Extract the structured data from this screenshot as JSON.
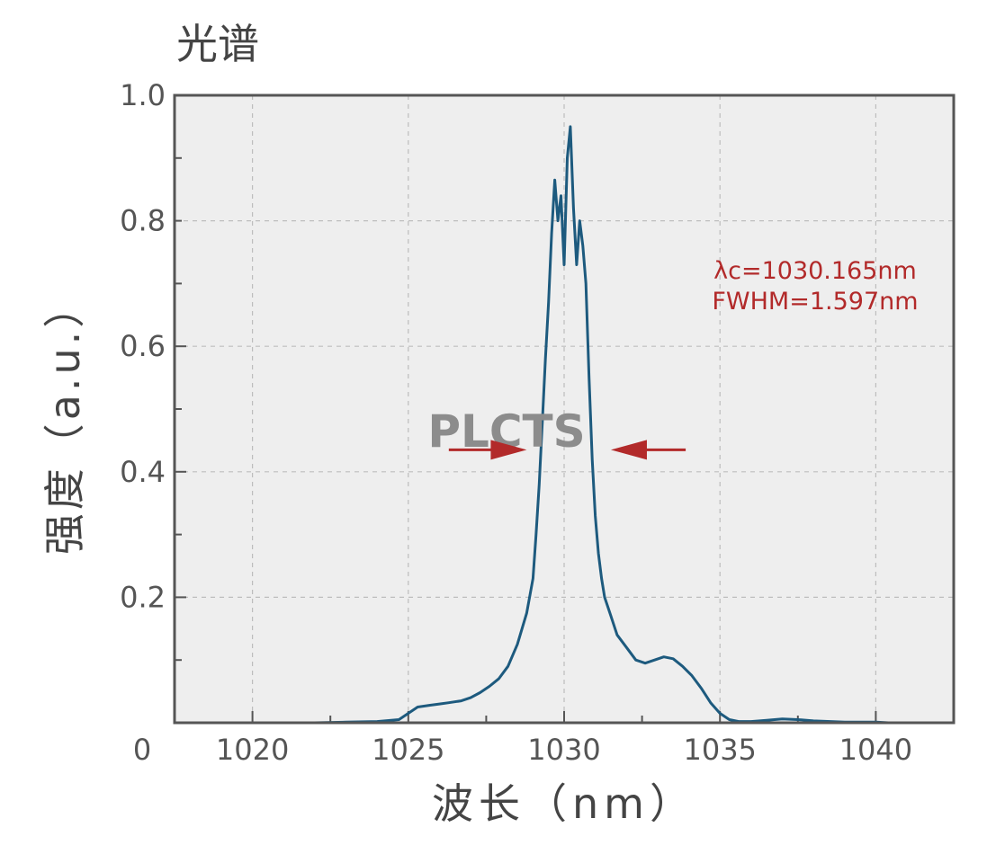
{
  "chart_data": {
    "type": "line",
    "title": "光谱",
    "xlabel": "波长（nm）",
    "ylabel": "强度（a.u.）",
    "xlim": [
      1017.5,
      1042.5
    ],
    "ylim": [
      0,
      1.0
    ],
    "x_ticks": [
      1020,
      1025,
      1030,
      1035,
      1040
    ],
    "x_tick_labels": [
      "1020",
      "1025",
      "1030",
      "1035",
      "1040"
    ],
    "y_ticks": [
      0.2,
      0.4,
      0.6,
      0.8,
      1.0
    ],
    "y_tick_labels": [
      "0.2",
      "0.4",
      "0.6",
      "0.8",
      "1.0"
    ],
    "origin_label": "0",
    "grid": true,
    "series": [
      {
        "color": "#1d5a7e",
        "x": [
          1020.0,
          1021.0,
          1022.0,
          1023.0,
          1024.0,
          1024.7,
          1025.0,
          1025.3,
          1025.7,
          1026.0,
          1026.3,
          1026.7,
          1027.0,
          1027.3,
          1027.6,
          1027.9,
          1028.2,
          1028.5,
          1028.8,
          1029.0,
          1029.1,
          1029.2,
          1029.3,
          1029.4,
          1029.5,
          1029.6,
          1029.7,
          1029.8,
          1029.9,
          1030.0,
          1030.1,
          1030.2,
          1030.3,
          1030.4,
          1030.5,
          1030.6,
          1030.7,
          1030.8,
          1030.9,
          1031.0,
          1031.1,
          1031.2,
          1031.3,
          1031.5,
          1031.7,
          1032.0,
          1032.3,
          1032.6,
          1032.9,
          1033.2,
          1033.5,
          1033.8,
          1034.1,
          1034.4,
          1034.7,
          1035.0,
          1035.3,
          1035.6,
          1036.0,
          1036.5,
          1037.0,
          1037.5,
          1038.0,
          1039.0,
          1040.0,
          1040.4
        ],
        "y": [
          0.0,
          0.0,
          0.0,
          0.001,
          0.002,
          0.005,
          0.015,
          0.025,
          0.028,
          0.03,
          0.032,
          0.035,
          0.04,
          0.048,
          0.058,
          0.07,
          0.09,
          0.125,
          0.175,
          0.23,
          0.3,
          0.38,
          0.48,
          0.58,
          0.67,
          0.78,
          0.865,
          0.8,
          0.84,
          0.73,
          0.9,
          0.95,
          0.82,
          0.73,
          0.8,
          0.76,
          0.7,
          0.55,
          0.42,
          0.33,
          0.27,
          0.23,
          0.2,
          0.17,
          0.14,
          0.12,
          0.1,
          0.095,
          0.1,
          0.105,
          0.102,
          0.09,
          0.075,
          0.055,
          0.032,
          0.015,
          0.005,
          0.002,
          0.002,
          0.004,
          0.006,
          0.005,
          0.003,
          0.001,
          0.001,
          0.0
        ]
      }
    ],
    "annotations": [
      {
        "text": "λc=1030.165nm",
        "color": "#b22a2a"
      },
      {
        "text": "FWHM=1.597nm",
        "color": "#b22a2a"
      }
    ],
    "fwhm_arrows": {
      "left": {
        "from_x": 1026.3,
        "to_x": 1028.8,
        "y": 0.435
      },
      "right": {
        "from_x": 1033.9,
        "to_x": 1031.5,
        "y": 0.435
      },
      "color": "#b22a2a"
    },
    "watermark": "PLCTS"
  }
}
